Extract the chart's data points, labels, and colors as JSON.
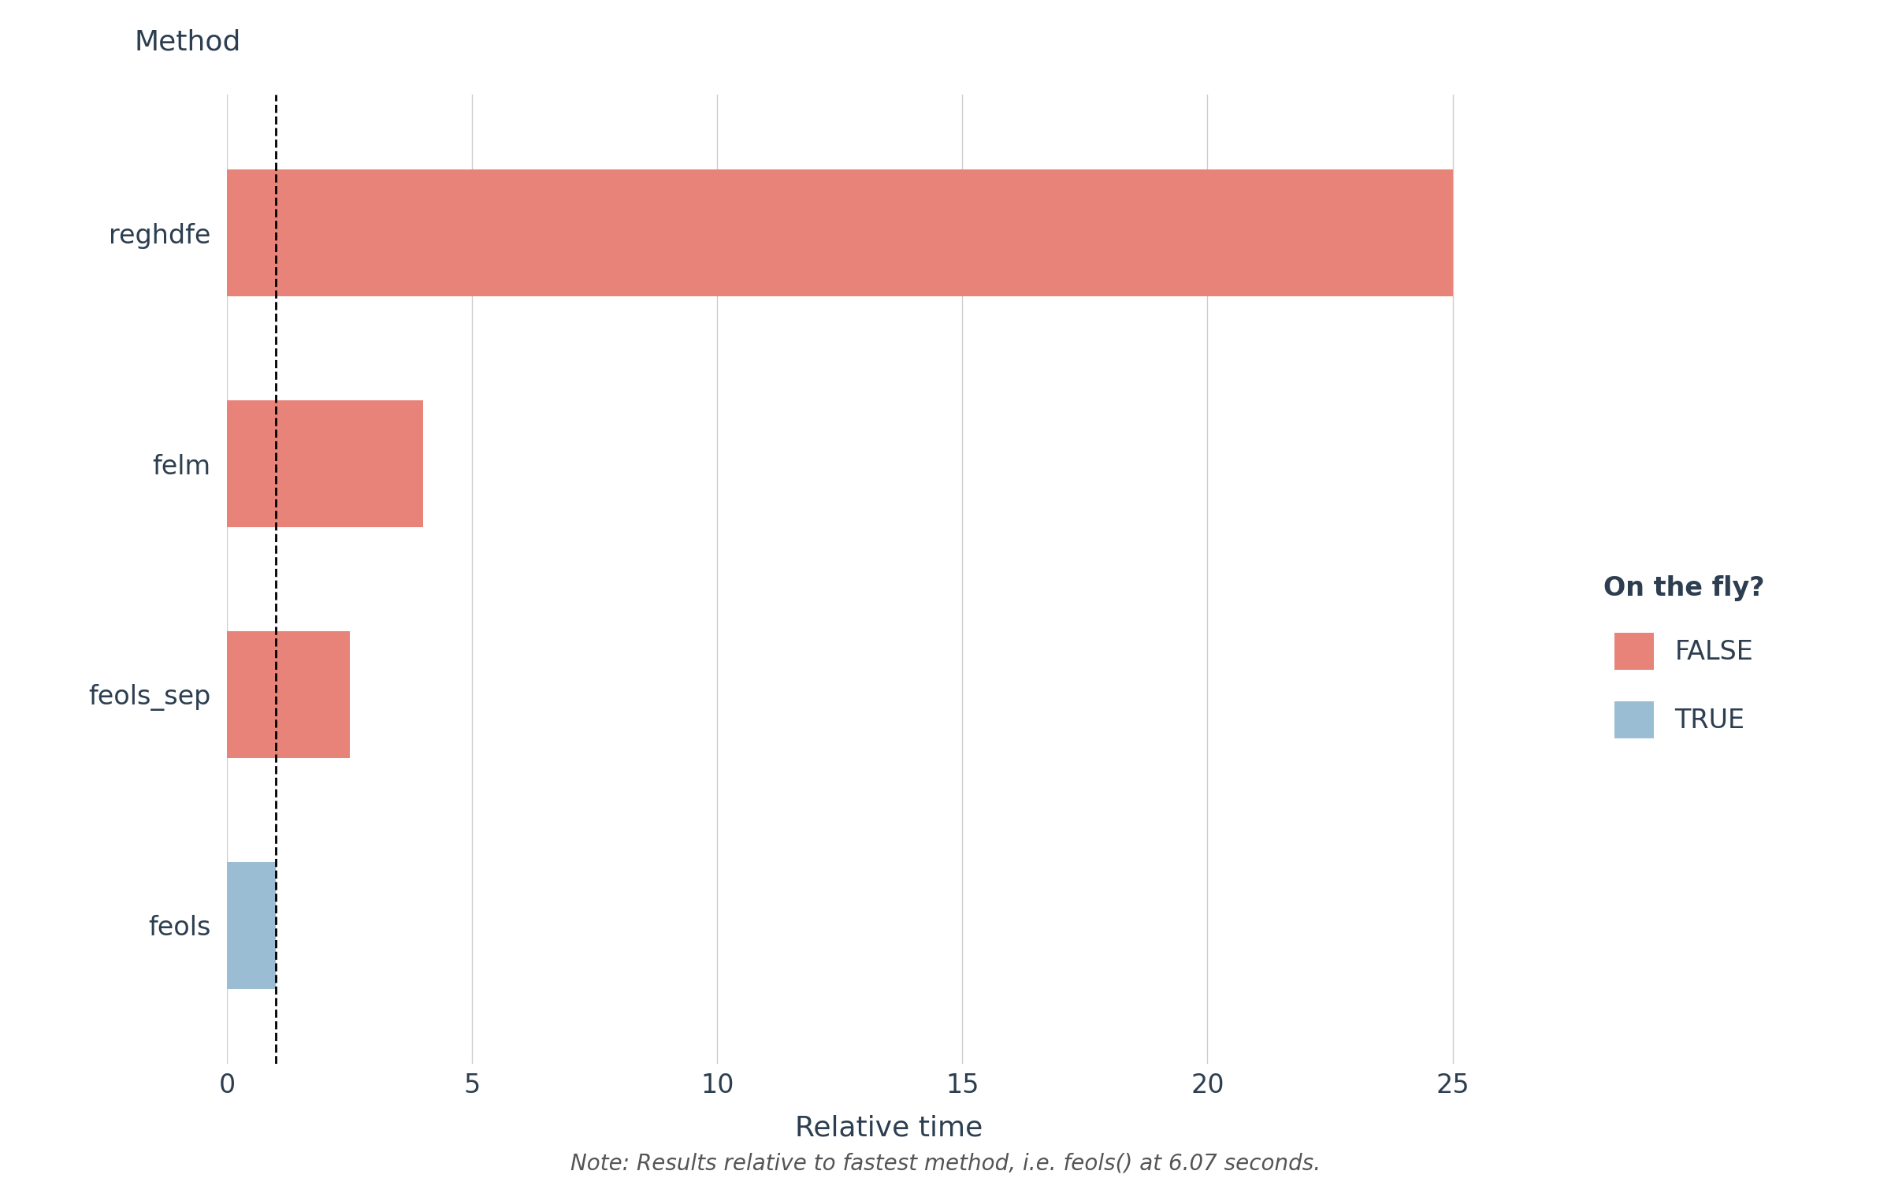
{
  "categories": [
    "reghdfe",
    "felm",
    "feols_sep",
    "feols"
  ],
  "values": [
    25.0,
    4.0,
    2.5,
    1.0
  ],
  "colors": [
    "#E8837A",
    "#E8837A",
    "#E8837A",
    "#9BBDD4"
  ],
  "dashed_line_x": 1.0,
  "xlim": [
    0,
    27
  ],
  "xticks": [
    0,
    5,
    10,
    15,
    20,
    25
  ],
  "xlabel": "Relative time",
  "ylabel": "Method",
  "legend_title": "On the fly?",
  "legend_labels": [
    "FALSE",
    "TRUE"
  ],
  "legend_colors": [
    "#E8837A",
    "#9BBDD4"
  ],
  "note_text": "Note: Results relative to fastest method, i.e. feols() at 6.07 seconds.",
  "background_color": "#FFFFFF",
  "bar_height": 0.55,
  "axis_label_fontsize": 26,
  "tick_fontsize": 24,
  "legend_fontsize": 24,
  "note_fontsize": 20,
  "text_color": "#2C3E50",
  "grid_color": "#CCCCCC"
}
